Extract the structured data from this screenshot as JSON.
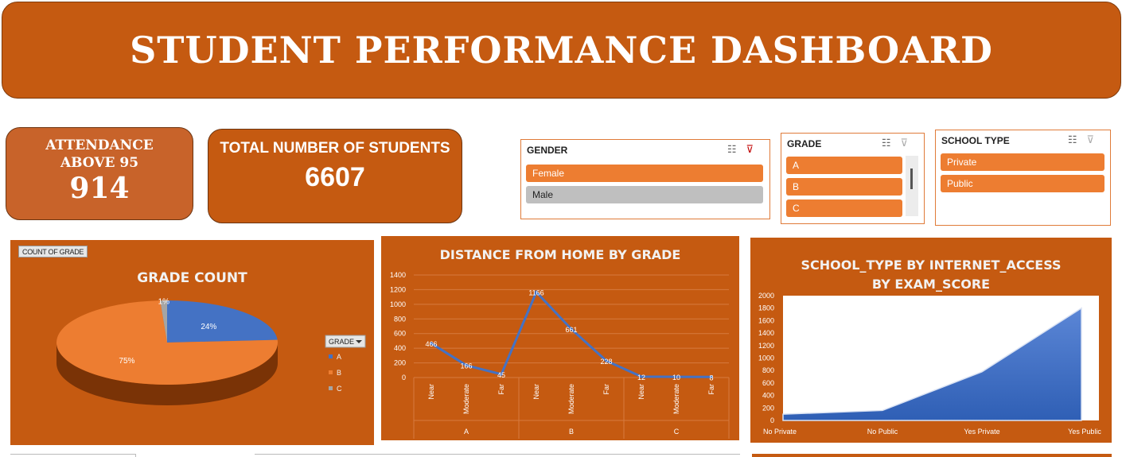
{
  "header": {
    "title": "STUDENT PERFORMANCE DASHBOARD"
  },
  "kpis": {
    "attendance": {
      "label_line1": "ATTENDANCE",
      "label_line2": "ABOVE 95",
      "value": "914"
    },
    "students": {
      "label": "TOTAL NUMBER OF STUDENTS",
      "value": "6607"
    }
  },
  "slicers": {
    "gender": {
      "title": "GENDER",
      "items": [
        {
          "label": "Female",
          "selected": true
        },
        {
          "label": "Male",
          "selected": false
        }
      ]
    },
    "grade": {
      "title": "GRADE",
      "items": [
        {
          "label": "A",
          "selected": true
        },
        {
          "label": "B",
          "selected": true
        },
        {
          "label": "C",
          "selected": true
        }
      ]
    },
    "school_type": {
      "title": "SCHOOL TYPE",
      "items": [
        {
          "label": "Private",
          "selected": true
        },
        {
          "label": "Public",
          "selected": true
        }
      ]
    }
  },
  "colors": {
    "panel": "#c55a11",
    "accent": "#ed7d31",
    "blue": "#4472c4",
    "gray": "#a5a5a5"
  },
  "chart_data": [
    {
      "type": "pie",
      "title": "GRADE COUNT",
      "field_button": "COUNT OF GRADE",
      "legend_title": "GRADE",
      "legend_placement": "right",
      "categories": [
        "A",
        "B",
        "C"
      ],
      "values": [
        24,
        75,
        1
      ],
      "data_labels": [
        "24%",
        "75%",
        "1%"
      ],
      "colors": [
        "#4472c4",
        "#ed7d31",
        "#a5a5a5"
      ]
    },
    {
      "type": "line",
      "title": "DISTANCE FROM HOME BY GRADE",
      "groups": [
        "A",
        "B",
        "C"
      ],
      "categories": [
        "Near",
        "Moderate",
        "Far",
        "Near",
        "Moderate",
        "Far",
        "Near",
        "Moderate",
        "Far"
      ],
      "values": [
        466,
        166,
        45,
        1166,
        661,
        228,
        12,
        10,
        8
      ],
      "ylim": [
        0,
        1400
      ],
      "yticks": [
        0,
        200,
        400,
        600,
        800,
        1000,
        1200,
        1400
      ],
      "grid": true
    },
    {
      "type": "area",
      "title_line1": "SCHOOL_TYPE BY INTERNET_ACCESS",
      "title_line2": "BY EXAM_SCORE",
      "categories": [
        "No Private",
        "No Public",
        "Yes Private",
        "Yes Public"
      ],
      "values": [
        100,
        160,
        780,
        1800
      ],
      "ylim": [
        0,
        2000
      ],
      "yticks": [
        0,
        200,
        400,
        600,
        800,
        1000,
        1200,
        1400,
        1600,
        1800,
        2000
      ]
    }
  ]
}
